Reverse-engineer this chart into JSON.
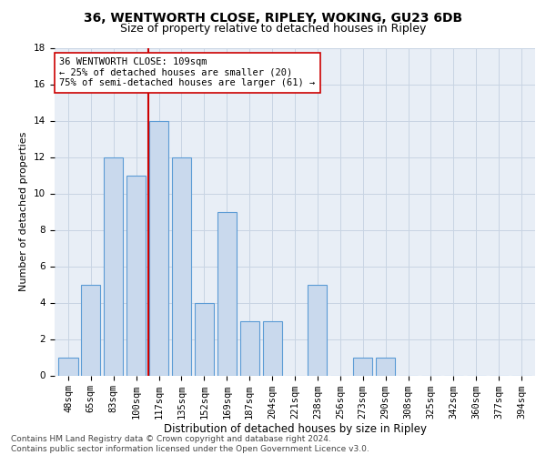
{
  "title1": "36, WENTWORTH CLOSE, RIPLEY, WOKING, GU23 6DB",
  "title2": "Size of property relative to detached houses in Ripley",
  "xlabel": "Distribution of detached houses by size in Ripley",
  "ylabel": "Number of detached properties",
  "categories": [
    "48sqm",
    "65sqm",
    "83sqm",
    "100sqm",
    "117sqm",
    "135sqm",
    "152sqm",
    "169sqm",
    "187sqm",
    "204sqm",
    "221sqm",
    "238sqm",
    "256sqm",
    "273sqm",
    "290sqm",
    "308sqm",
    "325sqm",
    "342sqm",
    "360sqm",
    "377sqm",
    "394sqm"
  ],
  "values": [
    1,
    5,
    12,
    11,
    14,
    12,
    4,
    9,
    3,
    3,
    0,
    5,
    0,
    1,
    1,
    0,
    0,
    0,
    0,
    0,
    0
  ],
  "bar_color": "#c9d9ed",
  "bar_edgecolor": "#5b9bd5",
  "vline_x": 3.52,
  "vline_color": "#cc0000",
  "annotation_text": "36 WENTWORTH CLOSE: 109sqm\n← 25% of detached houses are smaller (20)\n75% of semi-detached houses are larger (61) →",
  "annotation_box_color": "#ffffff",
  "annotation_box_edgecolor": "#cc0000",
  "ylim": [
    0,
    18
  ],
  "yticks": [
    0,
    2,
    4,
    6,
    8,
    10,
    12,
    14,
    16,
    18
  ],
  "grid_color": "#c8d4e3",
  "bg_color": "#e8eef6",
  "footer": "Contains HM Land Registry data © Crown copyright and database right 2024.\nContains public sector information licensed under the Open Government Licence v3.0.",
  "title1_fontsize": 10,
  "title2_fontsize": 9,
  "xlabel_fontsize": 8.5,
  "ylabel_fontsize": 8,
  "tick_fontsize": 7.5,
  "annot_fontsize": 7.5,
  "footer_fontsize": 6.5
}
